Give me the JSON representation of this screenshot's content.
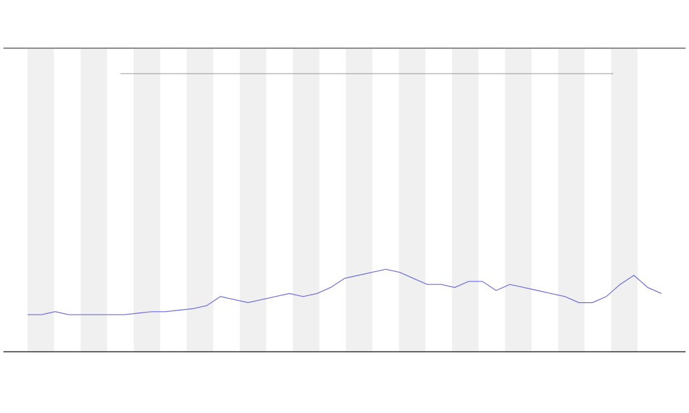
{
  "chart_data": {
    "type": "line",
    "ylim": [
      0,
      100
    ],
    "series": [
      {
        "color": "#6b6bdc",
        "values": [
          12,
          12,
          13,
          12,
          12,
          12,
          12,
          12,
          12.5,
          13,
          13,
          13.5,
          14,
          15,
          18,
          17,
          16,
          17,
          18,
          19,
          18,
          19,
          21,
          24,
          25,
          26,
          27,
          26,
          24,
          22,
          22,
          21,
          23,
          23,
          20,
          22,
          21,
          20,
          19,
          18,
          16,
          16,
          18,
          22,
          25,
          21,
          19
        ]
      }
    ]
  }
}
